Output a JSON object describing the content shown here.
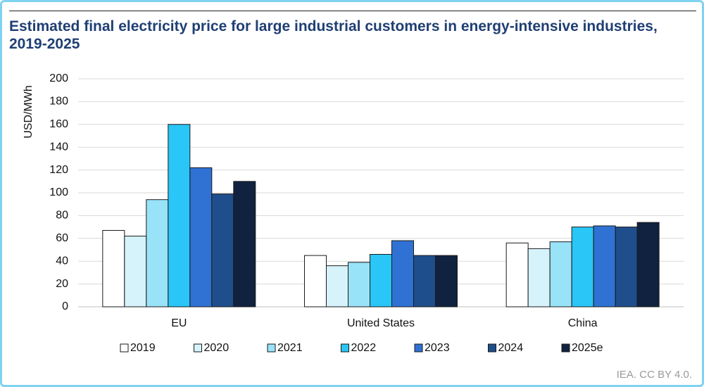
{
  "chart_data": {
    "type": "bar",
    "title": "Estimated final electricity price for large industrial customers in energy-intensive industries, 2019-2025",
    "y_label": "USD/MWh",
    "categories": [
      "EU",
      "United States",
      "China"
    ],
    "series": [
      {
        "name": "2019",
        "color": "#ffffff",
        "values": [
          67,
          45,
          56
        ]
      },
      {
        "name": "2020",
        "color": "#d6f3fc",
        "values": [
          62,
          36,
          51
        ]
      },
      {
        "name": "2021",
        "color": "#99e3f9",
        "values": [
          94,
          39,
          57
        ]
      },
      {
        "name": "2022",
        "color": "#29c6f7",
        "values": [
          160,
          46,
          70
        ]
      },
      {
        "name": "2023",
        "color": "#3072d4",
        "values": [
          122,
          58,
          71
        ]
      },
      {
        "name": "2024",
        "color": "#1f4e8c",
        "values": [
          99,
          45,
          70
        ]
      },
      {
        "name": "2025e",
        "color": "#10223f",
        "values": [
          110,
          45,
          74
        ]
      }
    ],
    "ylim": [
      0,
      200
    ],
    "yticks": [
      0,
      20,
      40,
      60,
      80,
      100,
      120,
      140,
      160,
      180,
      200
    ],
    "grid": true,
    "legend": "bottom",
    "source": "IEA. CC BY 4.0."
  }
}
